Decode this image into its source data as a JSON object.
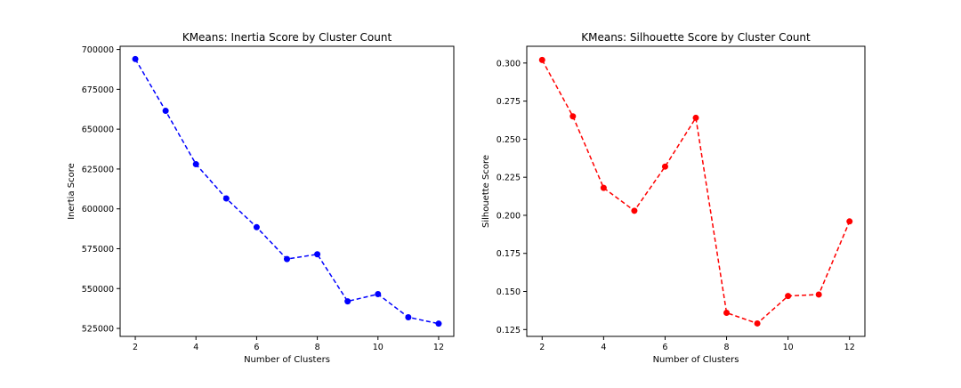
{
  "chart_data": [
    {
      "type": "line",
      "title": "KMeans: Inertia Score by Cluster Count",
      "xlabel": "Number of Clusters",
      "ylabel": "Inertia Score",
      "x": [
        2,
        3,
        4,
        5,
        6,
        7,
        8,
        9,
        10,
        11,
        12
      ],
      "series": [
        {
          "values": [
            694000,
            661500,
            628000,
            606500,
            588500,
            568500,
            571500,
            542000,
            546500,
            532000,
            528000
          ],
          "color": "#0000ff",
          "line_style": "dashed",
          "marker": "circle"
        }
      ],
      "xlim": [
        1.5,
        12.5
      ],
      "ylim": [
        520000,
        702000
      ],
      "xticks": [
        2,
        4,
        6,
        8,
        10,
        12
      ],
      "yticks": [
        525000,
        550000,
        575000,
        600000,
        625000,
        650000,
        675000,
        700000
      ],
      "xtick_labels": [
        "2",
        "4",
        "6",
        "8",
        "10",
        "12"
      ],
      "ytick_labels": [
        "525000",
        "550000",
        "575000",
        "600000",
        "625000",
        "650000",
        "675000",
        "700000"
      ],
      "grid": false
    },
    {
      "type": "line",
      "title": "KMeans: Silhouette Score by Cluster Count",
      "xlabel": "Number of Clusters",
      "ylabel": "Silhouette Score",
      "x": [
        2,
        3,
        4,
        5,
        6,
        7,
        8,
        9,
        10,
        11,
        12
      ],
      "series": [
        {
          "values": [
            0.302,
            0.265,
            0.218,
            0.203,
            0.232,
            0.264,
            0.136,
            0.129,
            0.147,
            0.148,
            0.196
          ],
          "color": "#ff0000",
          "line_style": "dashed",
          "marker": "circle"
        }
      ],
      "xlim": [
        1.5,
        12.5
      ],
      "ylim": [
        0.1205,
        0.311
      ],
      "xticks": [
        2,
        4,
        6,
        8,
        10,
        12
      ],
      "yticks": [
        0.125,
        0.15,
        0.175,
        0.2,
        0.225,
        0.25,
        0.275,
        0.3
      ],
      "xtick_labels": [
        "2",
        "4",
        "6",
        "8",
        "10",
        "12"
      ],
      "ytick_labels": [
        "0.125",
        "0.150",
        "0.175",
        "0.200",
        "0.225",
        "0.250",
        "0.275",
        "0.300"
      ],
      "grid": false
    }
  ]
}
